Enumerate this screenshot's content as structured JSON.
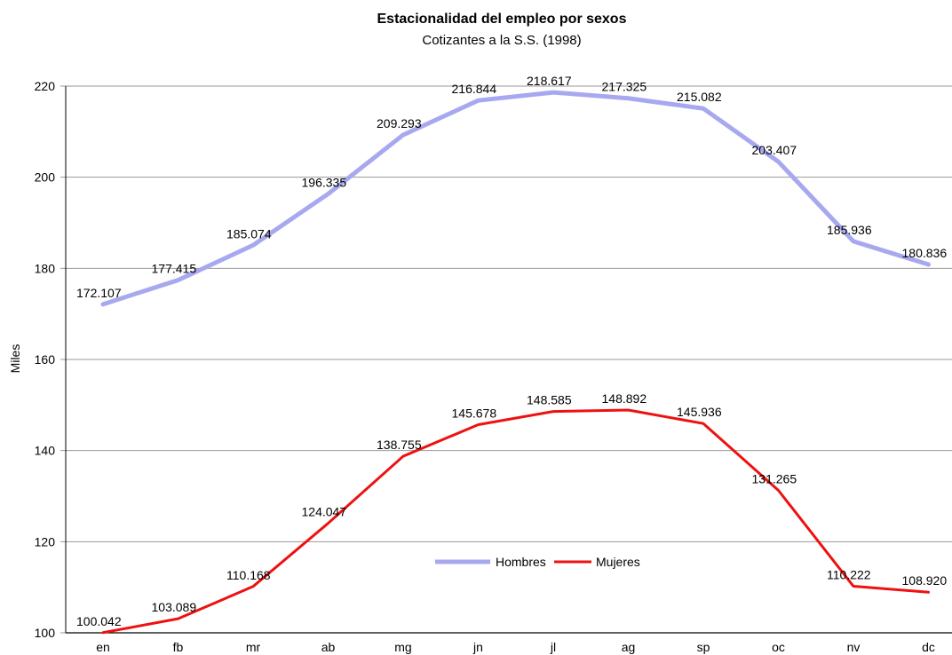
{
  "chart_data": {
    "type": "line",
    "title": "Estacionalidad del empleo por sexos",
    "subtitle": "Cotizantes a la S.S. (1998)",
    "xlabel": "",
    "ylabel": "Miles",
    "ylim": [
      100,
      220
    ],
    "yticks": [
      100,
      120,
      140,
      160,
      180,
      200,
      220
    ],
    "grid": true,
    "legend_placement": "bottom-center",
    "categories": [
      "en",
      "fb",
      "mr",
      "ab",
      "mg",
      "jn",
      "jl",
      "ag",
      "sp",
      "oc",
      "nv",
      "dc"
    ],
    "series": [
      {
        "name": "Hombres",
        "color": "#a8a8f0",
        "values": [
          172.107,
          177.415,
          185.074,
          196.335,
          209.293,
          216.844,
          218.617,
          217.325,
          215.082,
          203.407,
          185.936,
          180.836
        ],
        "labels": [
          "172.107",
          "177.415",
          "185.074",
          "196.335",
          "209.293",
          "216.844",
          "218.617",
          "217.325",
          "215.082",
          "203.407",
          "185.936",
          "180.836"
        ]
      },
      {
        "name": "Mujeres",
        "color": "#ee1111",
        "values": [
          100.042,
          103.089,
          110.168,
          124.047,
          138.755,
          145.678,
          148.585,
          148.892,
          145.936,
          131.265,
          110.222,
          108.92
        ],
        "labels": [
          "100.042",
          "103.089",
          "110.168",
          "124.047",
          "138.755",
          "145.678",
          "148.585",
          "148.892",
          "145.936",
          "131.265",
          "110.222",
          "108.920"
        ]
      }
    ]
  }
}
